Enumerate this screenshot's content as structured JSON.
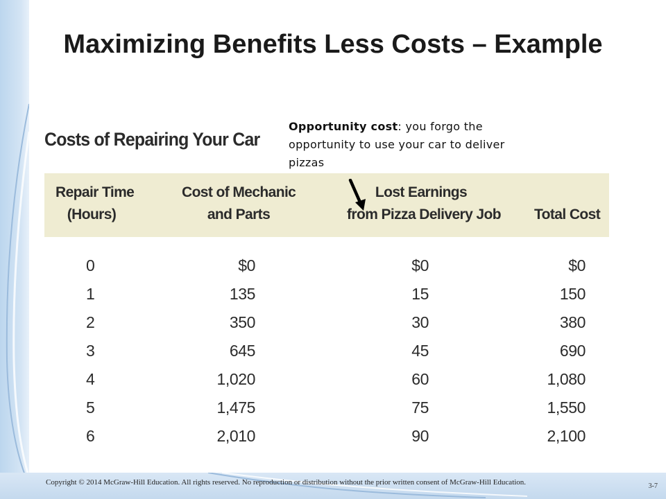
{
  "slide": {
    "title": "Maximizing Benefits Less Costs – Example",
    "table_title": "Costs of Repairing Your Car",
    "annotation": {
      "term": "Opportunity cost",
      "text": ": you forgo the opportunity to use your car to deliver pizzas"
    },
    "footer": "Copyright © 2014 McGraw-Hill Education. All rights reserved. No reproduction or distribution without the prior written consent of McGraw-Hill Education.",
    "page_number": "3-7",
    "accent_color": "#c4d9ee",
    "header_fill": "#efecd2"
  },
  "table": {
    "headers": [
      {
        "line1": "Repair Time",
        "line2": "(Hours)"
      },
      {
        "line1": "Cost of Mechanic",
        "line2": "and Parts"
      },
      {
        "line1": "Lost Earnings",
        "line2": "from Pizza Delivery Job"
      },
      {
        "line1": "Total Cost"
      }
    ],
    "rows": [
      [
        "0",
        "$0",
        "$0",
        "$0"
      ],
      [
        "1",
        "135",
        "15",
        "150"
      ],
      [
        "2",
        "350",
        "30",
        "380"
      ],
      [
        "3",
        "645",
        "45",
        "690"
      ],
      [
        "4",
        "1,020",
        "60",
        "1,080"
      ],
      [
        "5",
        "1,475",
        "75",
        "1,550"
      ],
      [
        "6",
        "2,010",
        "90",
        "2,100"
      ]
    ]
  }
}
